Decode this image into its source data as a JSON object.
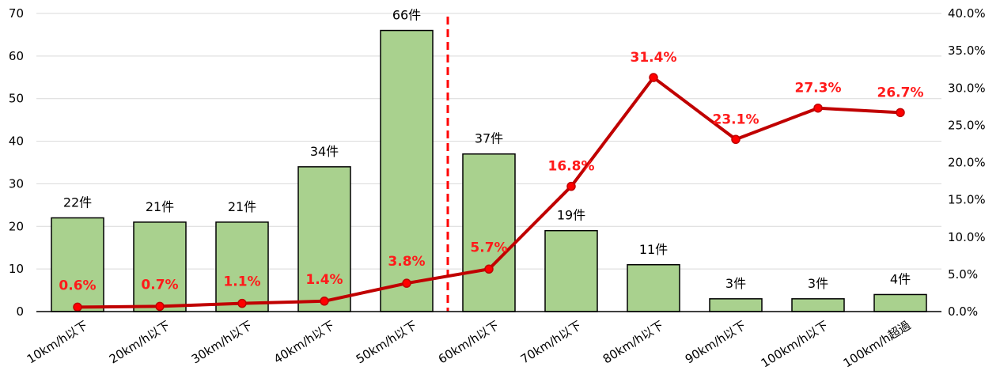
{
  "chart_data": {
    "type": "bar",
    "categories": [
      "10km/h以下",
      "20km/h以下",
      "30km/h以下",
      "40km/h以下",
      "50km/h以下",
      "60km/h以下",
      "70km/h以下",
      "80km/h以下",
      "90km/h以下",
      "100km/h以下",
      "100km/h超過"
    ],
    "series": [
      {
        "type": "bar",
        "values": [
          22,
          21,
          21,
          34,
          66,
          37,
          19,
          11,
          3,
          3,
          4
        ],
        "labels": [
          "22件",
          "21件",
          "21件",
          "34件",
          "66件",
          "37件",
          "19件",
          "11件",
          "3件",
          "3件",
          "4件"
        ],
        "axis": "left",
        "color": "#a9d18e"
      },
      {
        "type": "line",
        "values": [
          0.6,
          0.7,
          1.1,
          1.4,
          3.8,
          5.7,
          16.8,
          31.4,
          23.1,
          27.3,
          26.7
        ],
        "labels": [
          "0.6%",
          "0.7%",
          "1.1%",
          "1.4%",
          "3.8%",
          "5.7%",
          "16.8%",
          "31.4%",
          "23.1%",
          "27.3%",
          "26.7%"
        ],
        "axis": "right",
        "color": "#c00000",
        "label_color": "#ff1a1a"
      }
    ],
    "y_left": {
      "ylim": [
        0,
        70
      ],
      "ticks": [
        0,
        10,
        20,
        30,
        40,
        50,
        60,
        70
      ],
      "tick_labels": [
        "0",
        "10",
        "20",
        "30",
        "40",
        "50",
        "60",
        "70"
      ]
    },
    "y_right": {
      "ylim": [
        0,
        40
      ],
      "ticks": [
        0,
        5,
        10,
        15,
        20,
        25,
        30,
        35,
        40
      ],
      "tick_labels": [
        "0.0%",
        "5.0%",
        "10.0%",
        "15.0%",
        "20.0%",
        "25.0%",
        "30.0%",
        "35.0%",
        "40.0%"
      ]
    },
    "reference_line": {
      "between": [
        "50km/h以下",
        "60km/h以下"
      ],
      "style": "dashed",
      "color": "#ff0000"
    },
    "grid": true,
    "legend": "none",
    "title": "",
    "xlabel": "",
    "ylabel": ""
  }
}
